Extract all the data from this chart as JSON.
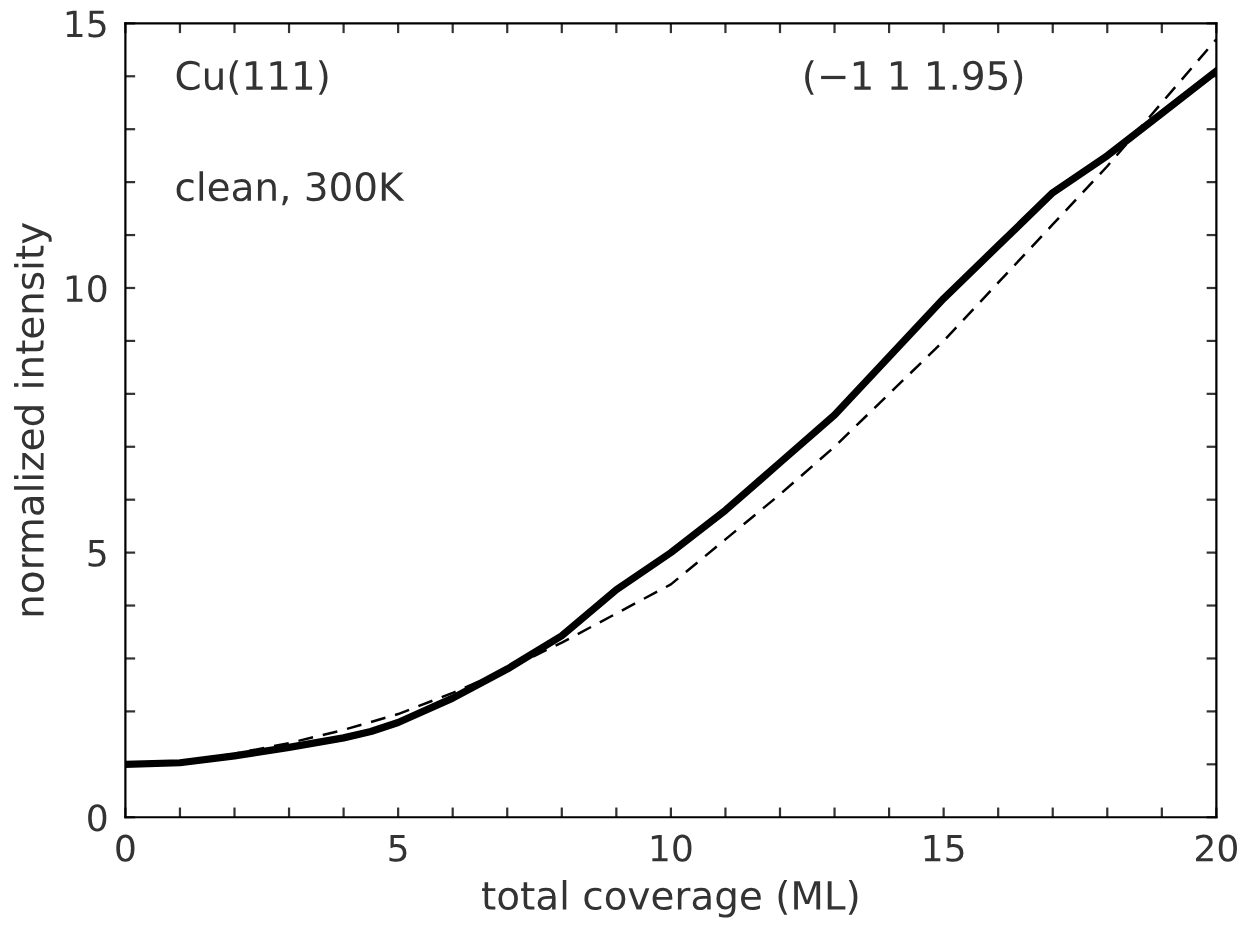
{
  "chart_data": {
    "type": "line",
    "xlabel": "total coverage (ML)",
    "ylabel": "normalized intensity",
    "annotations": [
      "Cu(111)",
      "(−1 1 1.95)",
      "clean, 300K"
    ],
    "xlim": [
      0,
      20
    ],
    "ylim": [
      0,
      15
    ],
    "xticks": [
      0,
      {
        "value": 1,
        "label": null
      },
      {
        "value": 2,
        "label": null
      },
      {
        "value": 3,
        "label": null
      },
      {
        "value": 4,
        "label": null
      },
      5,
      {
        "value": 6,
        "label": null
      },
      {
        "value": 7,
        "label": null
      },
      {
        "value": 8,
        "label": null
      },
      {
        "value": 9,
        "label": null
      },
      10,
      {
        "value": 11,
        "label": null
      },
      {
        "value": 12,
        "label": null
      },
      {
        "value": 13,
        "label": null
      },
      {
        "value": 14,
        "label": null
      },
      15,
      {
        "value": 16,
        "label": null
      },
      {
        "value": 17,
        "label": null
      },
      {
        "value": 18,
        "label": null
      },
      {
        "value": 19,
        "label": null
      },
      20
    ],
    "yticks": [
      0,
      {
        "value": 1,
        "label": null
      },
      {
        "value": 2,
        "label": null
      },
      {
        "value": 3,
        "label": null
      },
      {
        "value": 4,
        "label": null
      },
      5,
      {
        "value": 6,
        "label": null
      },
      {
        "value": 7,
        "label": null
      },
      {
        "value": 8,
        "label": null
      },
      {
        "value": 9,
        "label": null
      },
      10,
      {
        "value": 11,
        "label": null
      },
      {
        "value": 12,
        "label": null
      },
      {
        "value": 13,
        "label": null
      },
      {
        "value": 14,
        "label": null
      },
      15
    ],
    "x": [
      0,
      1,
      2,
      3,
      4,
      4.5,
      5,
      6,
      7,
      8,
      9,
      10,
      11,
      12,
      13,
      14,
      15,
      16,
      17,
      18,
      19,
      20
    ],
    "grid": false,
    "legend": false,
    "series": [
      {
        "color": "#000000",
        "line_style": "solid",
        "values": [
          1.0,
          1.03,
          1.16,
          1.32,
          1.5,
          1.62,
          1.79,
          2.25,
          2.8,
          3.43,
          4.3,
          5.0,
          5.8,
          6.7,
          7.6,
          8.7,
          9.8,
          10.8,
          11.8,
          12.5,
          13.3,
          14.1
        ]
      },
      {
        "color": "#000000",
        "line_style": "dashed",
        "values": [
          1.0,
          1.05,
          1.2,
          1.4,
          1.65,
          1.8,
          1.95,
          2.35,
          2.8,
          3.3,
          3.85,
          4.4,
          5.25,
          6.1,
          7.0,
          8.0,
          9.0,
          10.1,
          11.2,
          12.3,
          13.5,
          14.7
        ]
      }
    ]
  }
}
